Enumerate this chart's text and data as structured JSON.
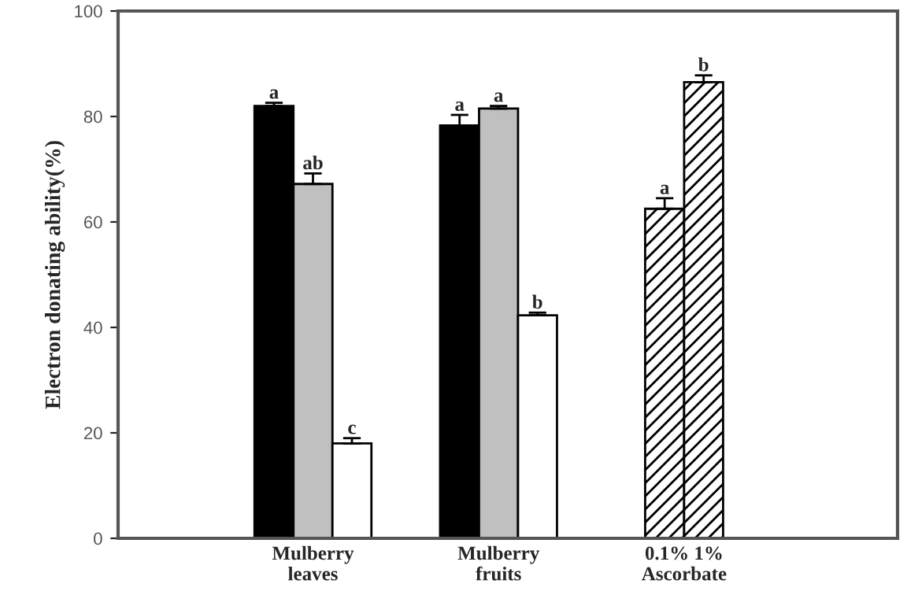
{
  "chart_data": {
    "type": "bar",
    "ylabel": "Electron donating ability(%)",
    "categories": [
      "Mulberry\nleaves",
      "Mulberry\nfruits",
      "0.1% 1%\nAscorbate"
    ],
    "series": [
      {
        "color": "#000000",
        "values": [
          82,
          78.3,
          null
        ],
        "errors": [
          0.6,
          2,
          null
        ]
      },
      {
        "color": "#c0c0c0",
        "values": [
          67.2,
          81.5,
          null
        ],
        "errors": [
          2,
          0.5,
          null
        ]
      },
      {
        "color": "#ffffff",
        "values": [
          18,
          42.3,
          null
        ],
        "errors": [
          1,
          0.5,
          null
        ]
      },
      {
        "color": "#000000",
        "values": [
          null,
          null,
          62.5
        ],
        "errors": [
          null,
          null,
          2
        ]
      },
      {
        "color": "#000000",
        "values": [
          null,
          null,
          86.5
        ],
        "errors": [
          null,
          null,
          1.3
        ]
      }
    ],
    "annotations": [
      "a",
      "ab",
      "c",
      "a",
      "a",
      "b",
      "a",
      "b"
    ],
    "ylim": [
      0,
      100
    ],
    "yticks": [
      0,
      20,
      40,
      60,
      80,
      100
    ],
    "grid": false,
    "legend": false
  }
}
